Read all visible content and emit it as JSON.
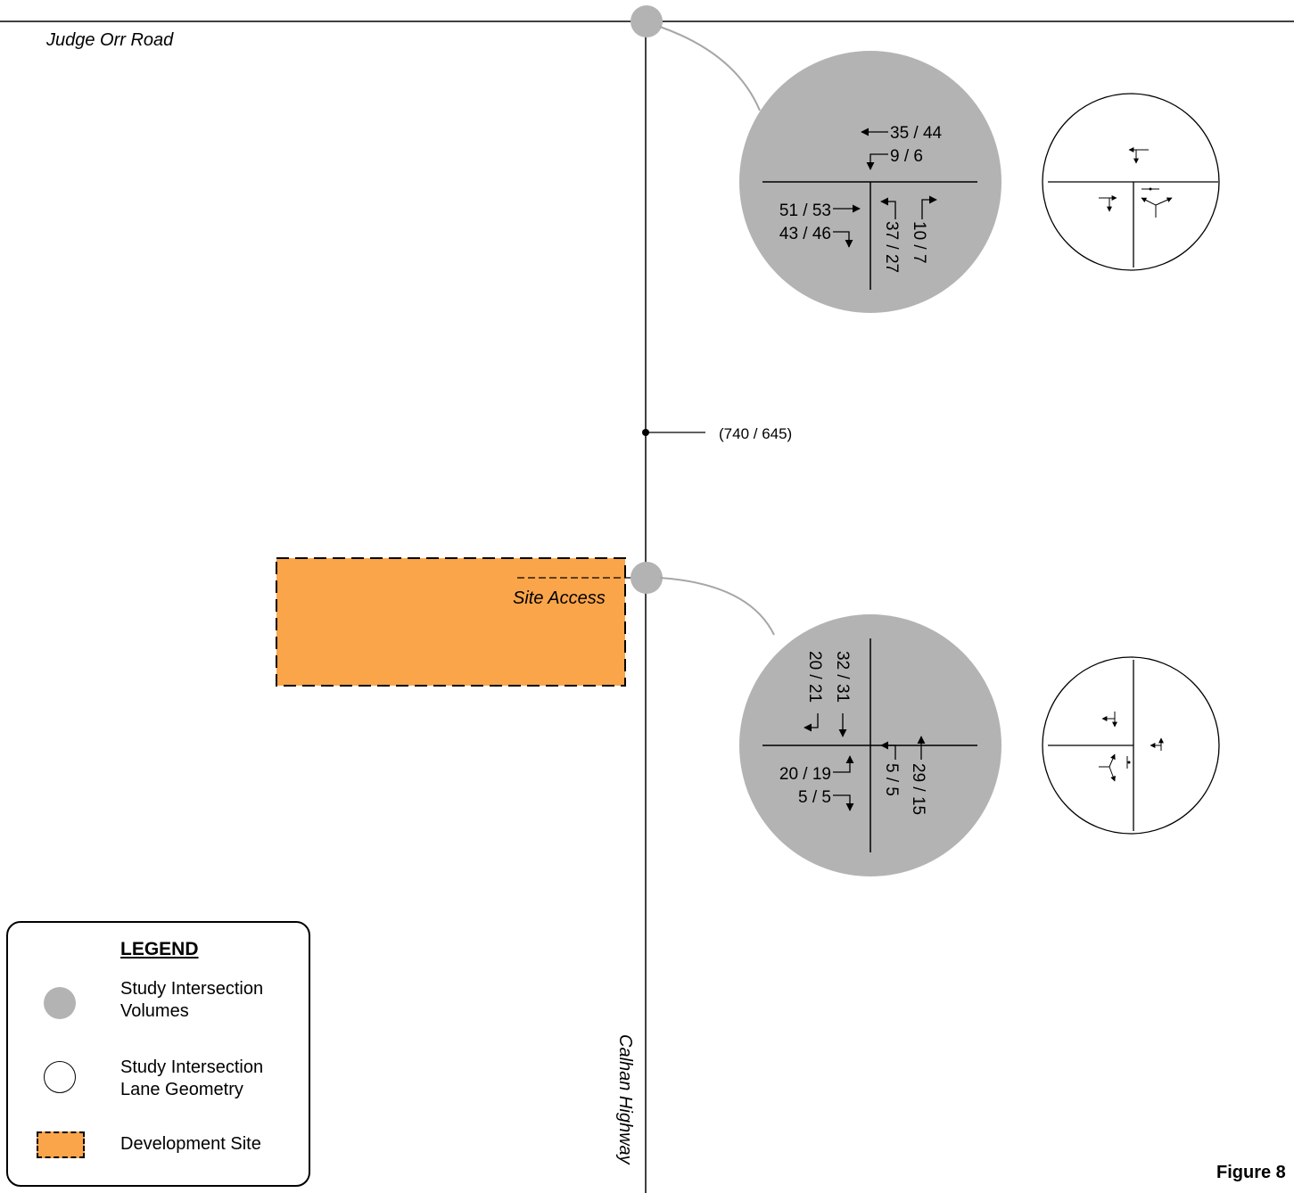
{
  "roads": {
    "judge_orr": "Judge Orr Road",
    "calhan": "Calhan Highway",
    "site_access": "Site Access"
  },
  "segment_volume": "(740 / 645)",
  "intersection_north": {
    "wb_through": "35 / 44",
    "wb_left": "9 / 6",
    "eb_through": "51 / 53",
    "eb_right": "43 / 46",
    "nb_left": "37 / 27",
    "nb_right": "10 / 7"
  },
  "intersection_south": {
    "sb_through": "32 / 31",
    "sb_right": "20 / 21",
    "eb_left": "20 / 19",
    "eb_right": "5 / 5",
    "nb_left": "5 / 5",
    "nb_through": "29 / 15"
  },
  "legend": {
    "title": "LEGEND",
    "items": [
      {
        "label_line1": "Study Intersection",
        "label_line2": "Volumes",
        "symbol": "gray-circle"
      },
      {
        "label_line1": "Study Intersection",
        "label_line2": "Lane Geometry",
        "symbol": "white-circle"
      },
      {
        "label_line1": "Development Site",
        "label_line2": "",
        "symbol": "orange-dashed-rect"
      }
    ]
  },
  "figure_label": "Figure 8",
  "colors": {
    "volume_bubble": "#b3b3b3",
    "connector": "#a6a6a6",
    "development_site": "#fba54b"
  }
}
